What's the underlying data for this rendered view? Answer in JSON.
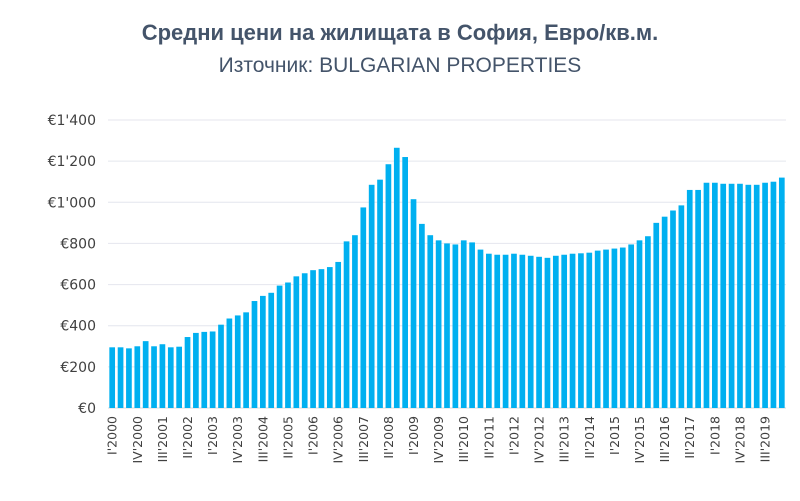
{
  "chart_data": {
    "type": "bar",
    "title": "Средни цени на жилищата в София, Евро/кв.м.",
    "subtitle": "Източник: BULGARIAN PROPERTIES",
    "xlabel": "",
    "ylabel": "",
    "ylim": [
      0,
      1400
    ],
    "yticks": [
      0,
      200,
      400,
      600,
      800,
      1000,
      1200,
      1400
    ],
    "ytick_labels": [
      "€0",
      "€200",
      "€400",
      "€600",
      "€800",
      "€1'000",
      "€1'200",
      "€1'400"
    ],
    "grid": true,
    "bar_color": "#00b0f0",
    "categories": [
      "I'2000",
      "II'2000",
      "III'2000",
      "IV'2000",
      "I'2001",
      "II'2001",
      "III'2001",
      "IV'2001",
      "I'2002",
      "II'2002",
      "III'2002",
      "IV'2002",
      "I'2003",
      "II'2003",
      "III'2003",
      "IV'2003",
      "I'2004",
      "II'2004",
      "III'2004",
      "IV'2004",
      "I'2005",
      "II'2005",
      "III'2005",
      "IV'2005",
      "I'2006",
      "II'2006",
      "III'2006",
      "IV'2006",
      "I'2007",
      "II'2007",
      "III'2007",
      "IV'2007",
      "I'2008",
      "II'2008",
      "III'2008",
      "IV'2008",
      "I'2009",
      "II'2009",
      "III'2009",
      "IV'2009",
      "I'2010",
      "II'2010",
      "III'2010",
      "IV'2010",
      "I'2011",
      "II'2011",
      "III'2011",
      "IV'2011",
      "I'2012",
      "II'2012",
      "III'2012",
      "IV'2012",
      "I'2013",
      "II'2013",
      "III'2013",
      "IV'2013",
      "I'2014",
      "II'2014",
      "III'2014",
      "IV'2014",
      "I'2015",
      "II'2015",
      "III'2015",
      "IV'2015",
      "I'2016",
      "II'2016",
      "III'2016",
      "IV'2016",
      "I'2017",
      "II'2017",
      "III'2017",
      "IV'2017",
      "I'2018",
      "II'2018",
      "III'2018",
      "IV'2018",
      "I'2019",
      "II'2019",
      "III'2019",
      "IV'2019",
      "I'2020"
    ],
    "shown_xtick_labels": [
      "I'2000",
      "IV'2000",
      "III'2001",
      "II'2002",
      "I'2003",
      "IV'2003",
      "III'2004",
      "II'2005",
      "I'2006",
      "IV'2006",
      "III'2007",
      "II'2008",
      "I'2009",
      "IV'2009",
      "III'2010",
      "II'2011",
      "I'2012",
      "IV'2012",
      "III'2013",
      "II'2014",
      "I'2015",
      "IV'2015",
      "III'2016",
      "II'2017",
      "I'2018",
      "IV'2018",
      "III'2019"
    ],
    "values": [
      295,
      295,
      290,
      300,
      325,
      300,
      310,
      295,
      298,
      345,
      365,
      370,
      372,
      405,
      435,
      450,
      465,
      520,
      545,
      560,
      595,
      610,
      640,
      655,
      670,
      675,
      685,
      710,
      810,
      840,
      975,
      1085,
      1110,
      1185,
      1265,
      1220,
      1015,
      895,
      840,
      815,
      800,
      795,
      815,
      805,
      770,
      750,
      745,
      745,
      750,
      745,
      740,
      735,
      730,
      740,
      745,
      750,
      752,
      755,
      765,
      770,
      775,
      780,
      795,
      815,
      835,
      900,
      930,
      960,
      985,
      1060,
      1060,
      1095,
      1095,
      1090,
      1090,
      1090,
      1085,
      1085,
      1095,
      1100,
      1120
    ]
  }
}
